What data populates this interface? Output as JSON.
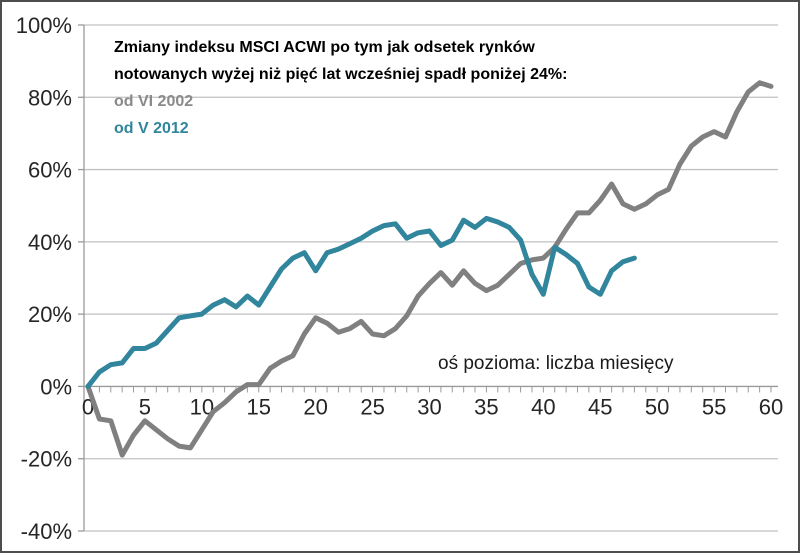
{
  "header": {
    "title_line1": "Zmiany indeksu MSCI ACWI po tym jak odsetek rynków",
    "title_line2": "notowanych wyżej niż pięć lat wcześniej spadł poniżej 24%:"
  },
  "legend": {
    "items": [
      {
        "label": "od VI 2002",
        "color": "#8a8a8a"
      },
      {
        "label": "od V 2012",
        "color": "#31859C"
      }
    ]
  },
  "annotation": "oś pozioma: liczba miesięcy",
  "chart_data": {
    "type": "line",
    "title": "Zmiany indeksu MSCI ACWI po tym jak odsetek rynków notowanych wyżej niż pięć lat wcześniej spadł poniżej 24%:",
    "xlabel": "oś pozioma: liczba miesięcy",
    "ylabel": "",
    "xlim": [
      0,
      60
    ],
    "ylim": [
      -40,
      100
    ],
    "x_ticks_labeled": [
      0,
      5,
      10,
      15,
      20,
      25,
      30,
      35,
      40,
      45,
      50,
      55,
      60
    ],
    "x_minor_tick_step": 1,
    "y_ticks": [
      100,
      80,
      60,
      40,
      20,
      0,
      -20,
      -40
    ],
    "y_tick_format": "percent",
    "grid": "horizontal",
    "legend_position": "top-left-inside",
    "series": [
      {
        "name": "od VI 2002",
        "color": "#808080",
        "x_start": 0,
        "x_step": 1,
        "values": [
          0,
          -9,
          -9.5,
          -19,
          -13.5,
          -9.5,
          -12,
          -14.5,
          -16.5,
          -17,
          -12,
          -7,
          -4.5,
          -1.5,
          0.5,
          0.5,
          5,
          7,
          8.5,
          14.5,
          19,
          17.5,
          15,
          16,
          18,
          14.5,
          14,
          16,
          19.5,
          25,
          28.5,
          31.5,
          28,
          32,
          28.5,
          26.5,
          28,
          31,
          34,
          35,
          35.5,
          38.5,
          43.5,
          48,
          48,
          51.5,
          56,
          50.5,
          49,
          50.5,
          53,
          54.5,
          61.5,
          66.5,
          69,
          70.5,
          69,
          76,
          81.5,
          84,
          83
        ]
      },
      {
        "name": "od V 2012",
        "color": "#31859C",
        "x_start": 0,
        "x_step": 1,
        "values": [
          0,
          4,
          6,
          6.5,
          10.5,
          10.5,
          12,
          15.5,
          19,
          19.5,
          20,
          22.5,
          24,
          22,
          25,
          22.5,
          27.5,
          32.5,
          35.5,
          37,
          32,
          37,
          38,
          39.5,
          41,
          43,
          44.5,
          45,
          41,
          42.5,
          43,
          39,
          40.5,
          46,
          44,
          46.5,
          45.5,
          44,
          40.5,
          31,
          25.5,
          38.5,
          36.5,
          34,
          27.5,
          25.5,
          32,
          34.5,
          35.5
        ]
      }
    ]
  }
}
